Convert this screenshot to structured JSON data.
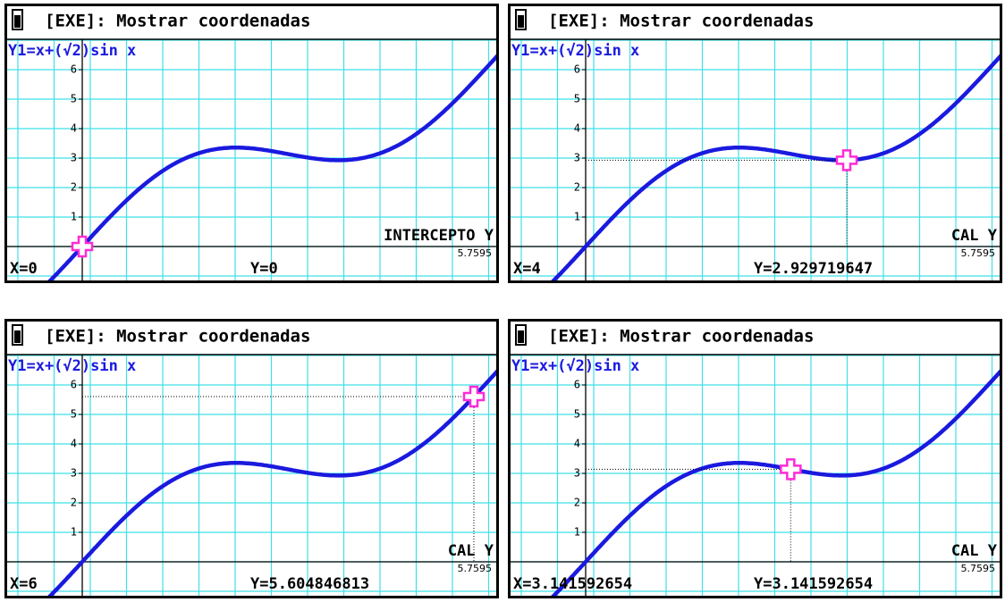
{
  "panels": [
    {
      "header": "[EXE]: Mostrar coordenadas",
      "function": "Y1=x+(√2)sin x",
      "yticks": [
        "1",
        "2",
        "3",
        "4",
        "5",
        "6"
      ],
      "mode_label": "INTERCEPTO Y",
      "scale_value": "5.7595",
      "x_readout": "X=0",
      "y_readout": "Y=0"
    },
    {
      "header": "[EXE]: Mostrar coordenadas",
      "function": "Y1=x+(√2)sin x",
      "yticks": [
        "1",
        "2",
        "3",
        "4",
        "5",
        "6"
      ],
      "mode_label": "CAL Y",
      "scale_value": "5.7595",
      "x_readout": "X=4",
      "y_readout": "Y=2.929719647"
    },
    {
      "header": "[EXE]: Mostrar coordenadas",
      "function": "Y1=x+(√2)sin x",
      "yticks": [
        "1",
        "2",
        "3",
        "4",
        "5",
        "6"
      ],
      "mode_label": "CAL Y",
      "scale_value": "5.7595",
      "x_readout": "X=6",
      "y_readout": "Y=5.604846813"
    },
    {
      "header": "[EXE]: Mostrar coordenadas",
      "function": "Y1=x+(√2)sin x",
      "yticks": [
        "1",
        "2",
        "3",
        "4",
        "5",
        "6"
      ],
      "mode_label": "CAL Y",
      "scale_value": "5.7595",
      "x_readout": "X=3.141592654",
      "y_readout": "Y=3.141592654"
    }
  ]
}
